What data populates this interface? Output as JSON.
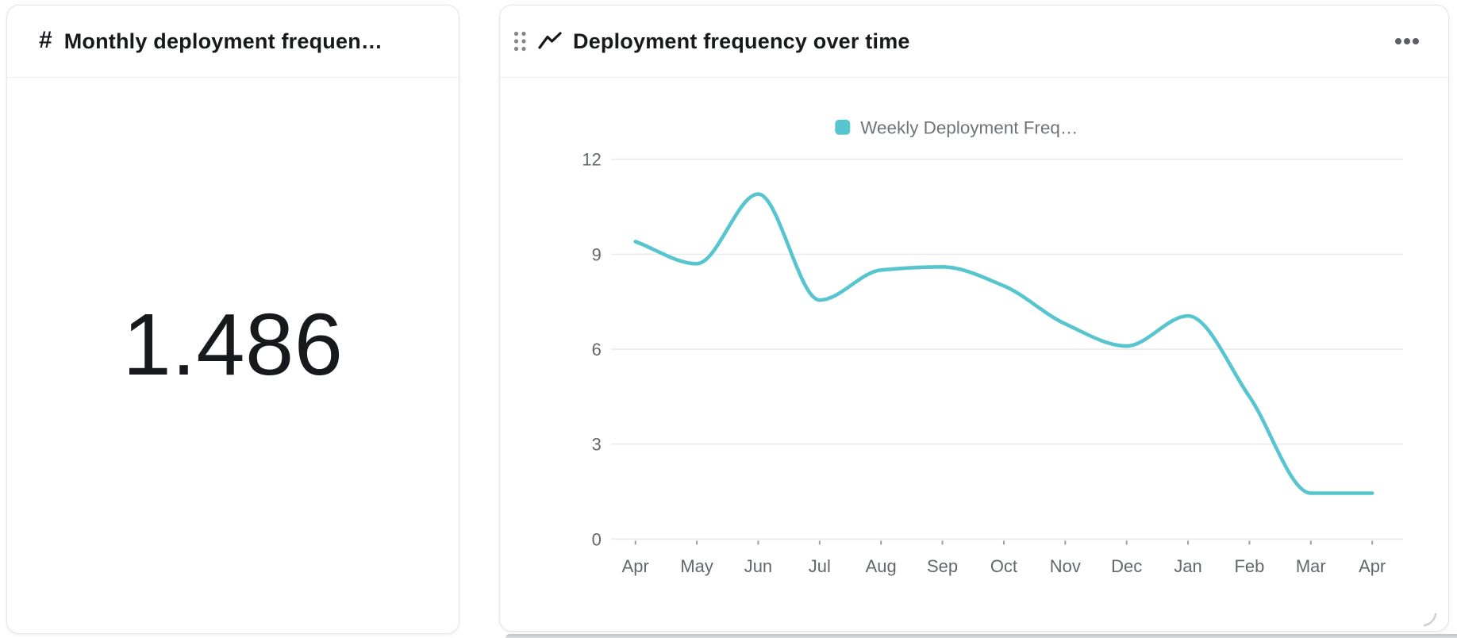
{
  "metric_card": {
    "icon_glyph": "#",
    "title": "Monthly deployment frequen…",
    "value": "1.486"
  },
  "chart_card": {
    "title": "Deployment frequency over time"
  },
  "colors": {
    "line": "#56c5cf",
    "grid": "#e9eaec",
    "axis_text": "#63676d",
    "legend_text": "#6f7378",
    "tick_mark": "#9ba0a5",
    "title_text": "#17191c",
    "icon_gray": "#83878d",
    "menu_dots": "#5c5f63",
    "resize_corner": "#cdd0d4"
  },
  "chart_data": {
    "type": "line",
    "title": "Deployment frequency over time",
    "categories": [
      "Apr",
      "May",
      "Jun",
      "Jul",
      "Aug",
      "Sep",
      "Oct",
      "Nov",
      "Dec",
      "Jan",
      "Feb",
      "Mar",
      "Apr"
    ],
    "series": [
      {
        "name": "Weekly Deployment Freq…",
        "color": "#56c5cf",
        "values": [
          9.4,
          8.7,
          10.9,
          7.55,
          8.5,
          8.6,
          8.0,
          6.8,
          6.1,
          7.05,
          4.5,
          1.45,
          1.45
        ]
      }
    ],
    "y_ticks": [
      12,
      9,
      6,
      3,
      0
    ],
    "ylim": [
      0,
      12
    ],
    "grid": true,
    "legend_position": "top",
    "interpolation": "monotone"
  }
}
